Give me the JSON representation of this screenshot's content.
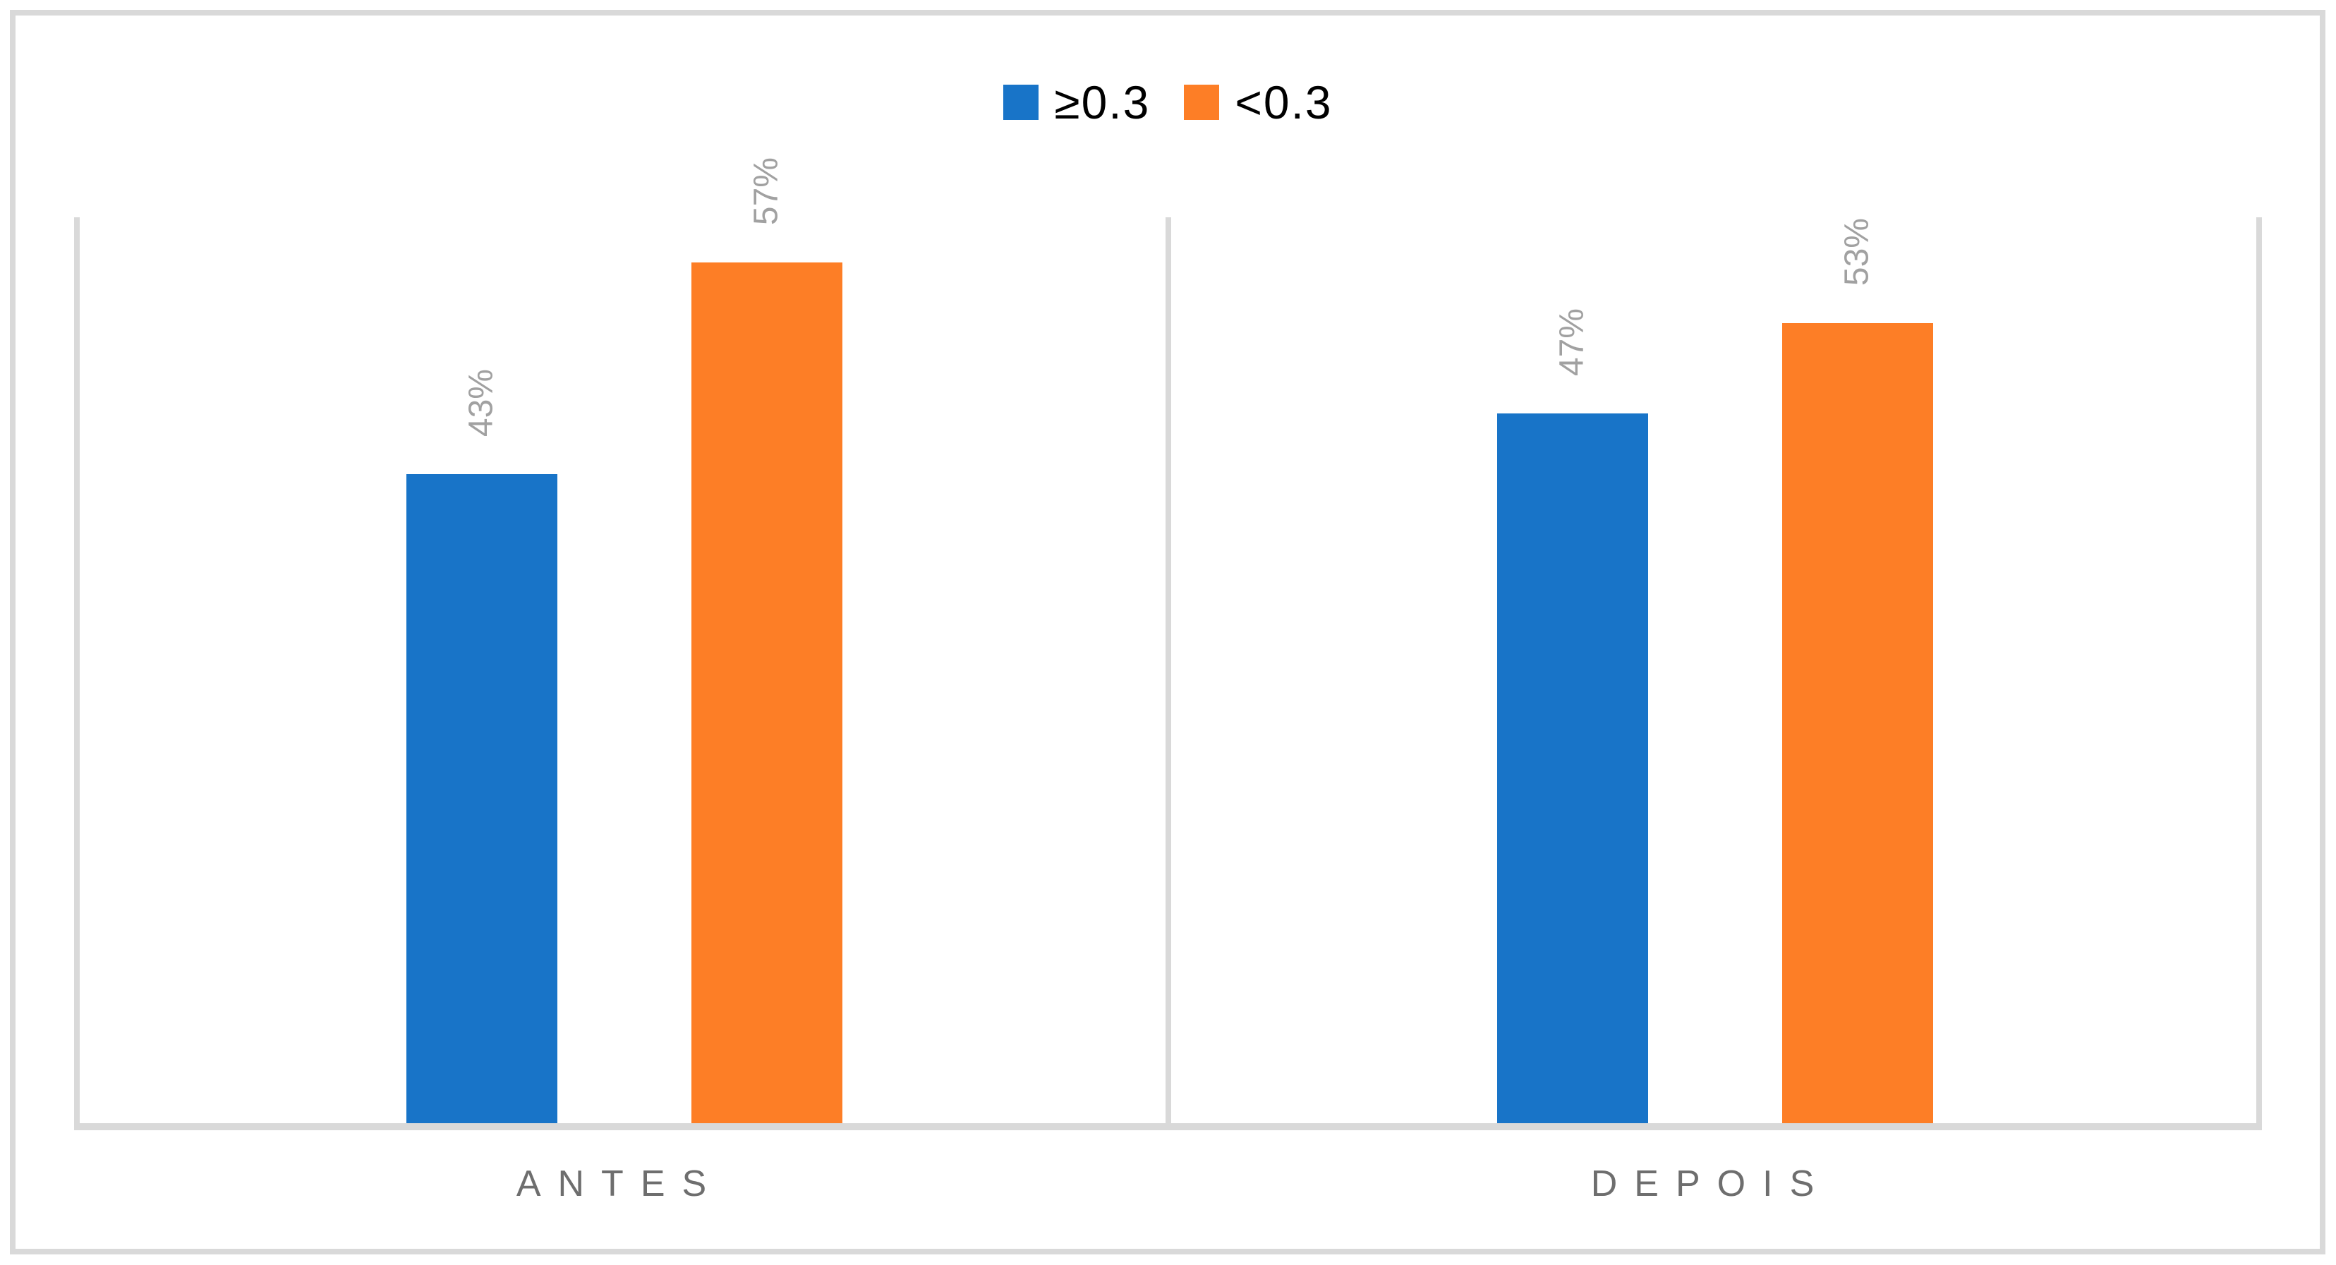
{
  "chart_data": {
    "type": "bar",
    "categories": [
      "ANTES",
      "DEPOIS"
    ],
    "series": [
      {
        "name": "≥0.3",
        "color": "#1874C8",
        "values": [
          43,
          47
        ],
        "labels": [
          "43%",
          "47%"
        ]
      },
      {
        "name": "<0.3",
        "color": "#FD7E26",
        "values": [
          57,
          53
        ],
        "labels": [
          "57%",
          "53%"
        ]
      }
    ],
    "title": "",
    "xlabel": "",
    "ylabel": "",
    "value_unit": "%",
    "ylim": [
      0,
      60
    ],
    "y_axis_labels_visible": false,
    "legend_position": "top-center",
    "grid": "vertical-category-separators-only",
    "data_label_rotation_deg": -90
  },
  "styles": {
    "line_color": "#D9D9D9",
    "data_label_color": "#A1A1A1",
    "category_label_color": "#6E6E6E",
    "legend_text_color": "#000000",
    "background_color": "#FFFFFF"
  }
}
